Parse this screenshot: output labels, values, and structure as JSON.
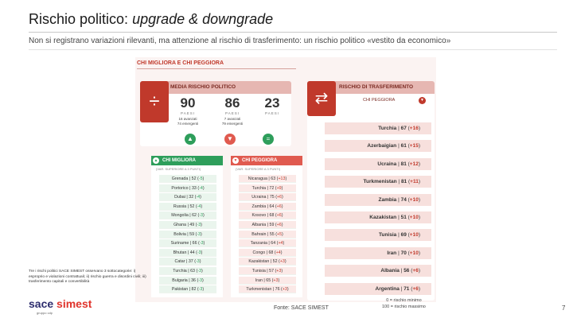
{
  "header": {
    "title_main": "Rischio politico: ",
    "title_italic": "upgrade & downgrade",
    "subtitle": "Non si registrano variazioni rilevanti, ma attenzione al rischio di trasferimento: un rischio politico «vestito da economico»"
  },
  "infographic": {
    "section_title": "CHI MIGLIORA E CHI PEGGIORA",
    "average_panel": {
      "title": "MEDIA RISCHIO POLITICO",
      "icon": "divide-icon",
      "stats": [
        {
          "value": "90",
          "label": "PAESI",
          "note_1": "16 avanzati",
          "note_2": "74 emergenti",
          "indicator": "up",
          "color": "#2e9e5b"
        },
        {
          "value": "86",
          "label": "PAESI",
          "note_1": "7 avanzati",
          "note_2": "79 emergenti",
          "indicator": "down",
          "color": "#e05a4f"
        },
        {
          "value": "23",
          "label": "PAESI",
          "note_1": "",
          "note_2": "",
          "indicator": "equal",
          "color": "#2e9e5b"
        }
      ]
    },
    "transfer_panel": {
      "title": "RISCHIO DI TRASFERIMENTO",
      "icon": "arrows-exchange-icon",
      "subtitle": "CHI PEGGIORA",
      "rows": [
        {
          "country": "Turchia",
          "score": "67",
          "delta": "+16"
        },
        {
          "country": "Azerbaigian",
          "score": "61",
          "delta": "+15"
        },
        {
          "country": "Ucraina",
          "score": "81",
          "delta": "+12"
        },
        {
          "country": "Turkmenistan",
          "score": "81",
          "delta": "+11"
        },
        {
          "country": "Zambia",
          "score": "74",
          "delta": "+10"
        },
        {
          "country": "Kazakistan",
          "score": "51",
          "delta": "+10"
        },
        {
          "country": "Tunisia",
          "score": "69",
          "delta": "+10"
        },
        {
          "country": "Iran",
          "score": "70",
          "delta": "+10"
        },
        {
          "country": "Albania",
          "score": "56",
          "delta": "+6"
        },
        {
          "country": "Argentina",
          "score": "71",
          "delta": "+6"
        }
      ]
    },
    "improving": {
      "title": "CHI MIGLIORA",
      "note": "(VAR. SUPERIORE A 3 PUNTI)",
      "rows": [
        {
          "country": "Grenada",
          "score": "52",
          "delta": "-5"
        },
        {
          "country": "Portorico",
          "score": "33",
          "delta": "-4"
        },
        {
          "country": "Dubai",
          "score": "32",
          "delta": "-4"
        },
        {
          "country": "Russia",
          "score": "52",
          "delta": "-4"
        },
        {
          "country": "Mongolia",
          "score": "62",
          "delta": "-3"
        },
        {
          "country": "Ghana",
          "score": "49",
          "delta": "-3"
        },
        {
          "country": "Bolivia",
          "score": "59",
          "delta": "-3"
        },
        {
          "country": "Suriname",
          "score": "66",
          "delta": "-3"
        },
        {
          "country": "Bhutan",
          "score": "44",
          "delta": "-3"
        },
        {
          "country": "Catar",
          "score": "37",
          "delta": "-3"
        },
        {
          "country": "Turchia",
          "score": "63",
          "delta": "-3"
        },
        {
          "country": "Bulgaria",
          "score": "36",
          "delta": "-3"
        },
        {
          "country": "Pakistan",
          "score": "82",
          "delta": "-3"
        }
      ]
    },
    "worsening": {
      "title": "CHI PEGGIORA",
      "note": "(VAR. SUPERIORE A 3 PUNTI)",
      "rows": [
        {
          "country": "Nicaragua",
          "score": "63",
          "delta": "+13"
        },
        {
          "country": "Turchia",
          "score": "72",
          "delta": "+9"
        },
        {
          "country": "Ucraina",
          "score": "75",
          "delta": "+6"
        },
        {
          "country": "Zambia",
          "score": "64",
          "delta": "+6"
        },
        {
          "country": "Kosovo",
          "score": "68",
          "delta": "+6"
        },
        {
          "country": "Albania",
          "score": "59",
          "delta": "+6"
        },
        {
          "country": "Bahrain",
          "score": "55",
          "delta": "+5"
        },
        {
          "country": "Tanzania",
          "score": "64",
          "delta": "+4"
        },
        {
          "country": "Congo",
          "score": "68",
          "delta": "+4"
        },
        {
          "country": "Kazakistan",
          "score": "52",
          "delta": "+3"
        },
        {
          "country": "Tunisia",
          "score": "57",
          "delta": "+3"
        },
        {
          "country": "Iran",
          "score": "65",
          "delta": "+3"
        },
        {
          "country": "Turkmenistan",
          "score": "76",
          "delta": "+3"
        }
      ]
    }
  },
  "footer": {
    "note": "Tre i rischi politici SACE SIMEST osservano 3 sottocategorie: i) esproprio e violazioni contrattuali; ii) rischio guerra e disordini civili; iii) trasferimento capitali e convertibilità",
    "logo_part1": "sace",
    "logo_part2": "simest",
    "logo_tag": "gruppo cdp",
    "source": "Fonte: SACE SIMEST",
    "scale_line1": "0 = rischio minimo",
    "scale_line2": "100 = rischio massimo",
    "page_number": "7"
  }
}
